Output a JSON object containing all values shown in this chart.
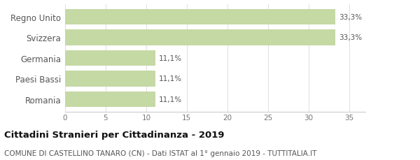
{
  "categories": [
    "Romania",
    "Paesi Bassi",
    "Germania",
    "Svizzera",
    "Regno Unito"
  ],
  "values": [
    11.1,
    11.1,
    11.1,
    33.3,
    33.3
  ],
  "labels": [
    "11,1%",
    "11,1%",
    "11,1%",
    "33,3%",
    "33,3%"
  ],
  "bar_color": "#c5d9a4",
  "xlim": [
    0,
    37
  ],
  "xticks": [
    0,
    5,
    10,
    15,
    20,
    25,
    30,
    35
  ],
  "title_bold": "Cittadini Stranieri per Cittadinanza - 2019",
  "subtitle": "COMUNE DI CASTELLINO TANARO (CN) - Dati ISTAT al 1° gennaio 2019 - TUTTITALIA.IT",
  "title_fontsize": 9.5,
  "subtitle_fontsize": 7.5,
  "label_fontsize": 7.5,
  "tick_fontsize": 7.5,
  "ytick_fontsize": 8.5,
  "background_color": "#ffffff",
  "bar_height": 0.75
}
